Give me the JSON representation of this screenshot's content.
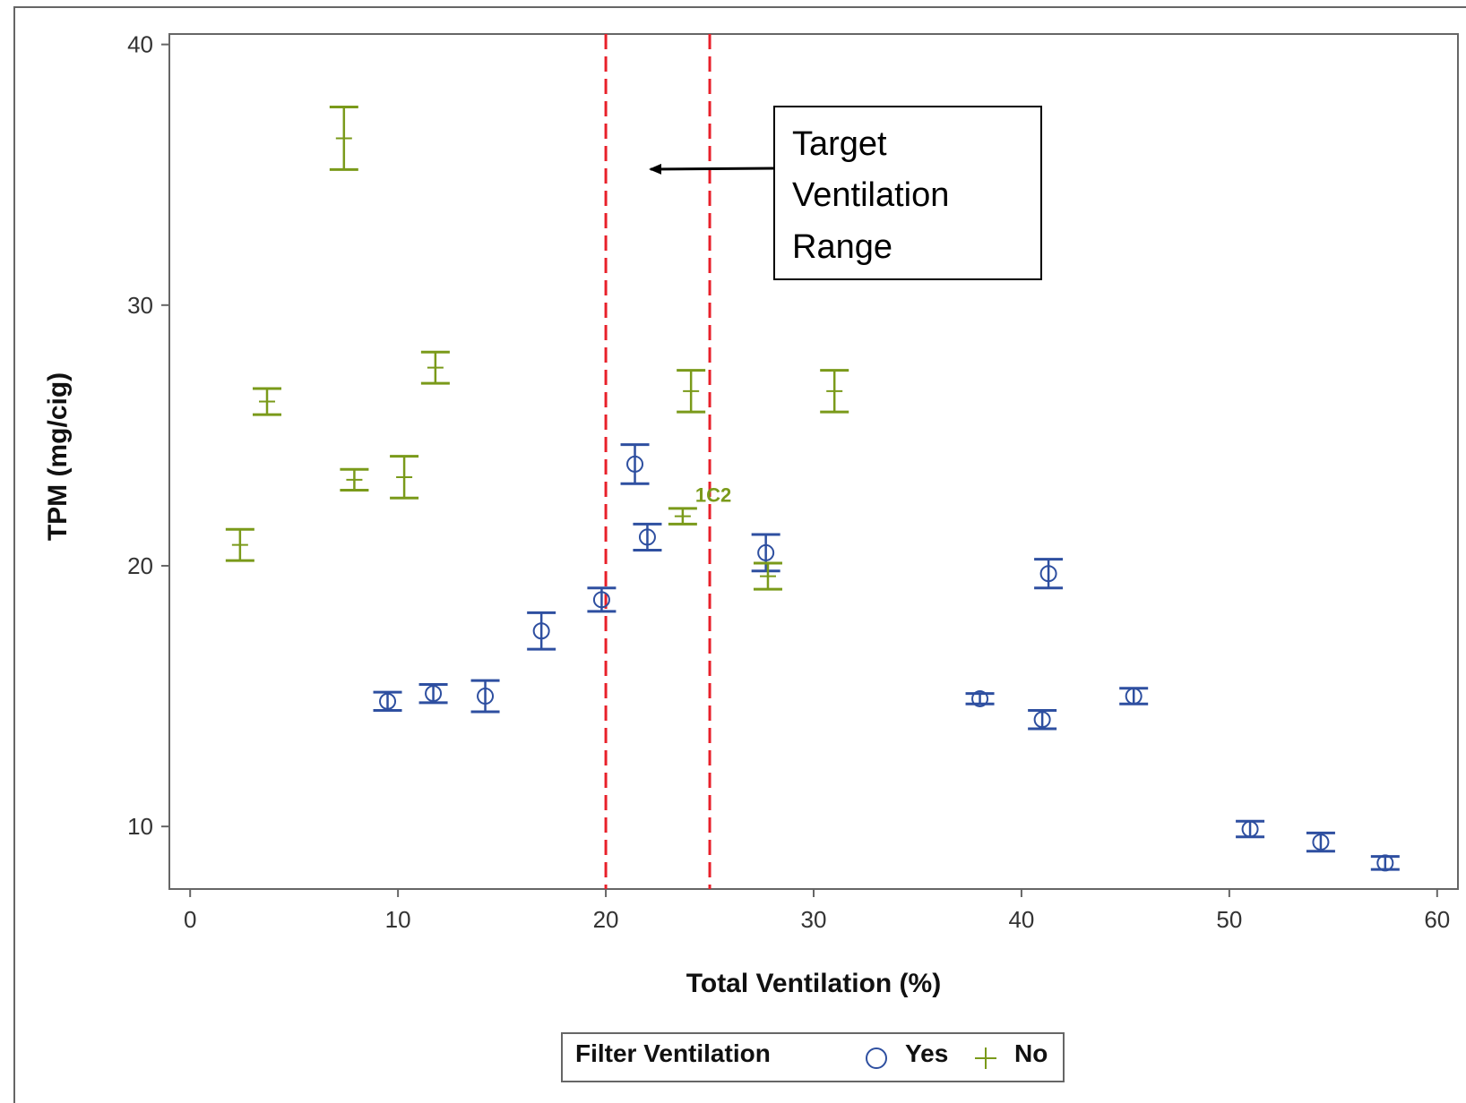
{
  "chart_data": {
    "type": "scatter",
    "xlabel": "Total Ventilation (%)",
    "ylabel": "TPM (mg/cig)",
    "xlim": [
      -1,
      61
    ],
    "ylim": [
      7.6,
      40.4
    ],
    "xticks": [
      0,
      10,
      20,
      30,
      40,
      50,
      60
    ],
    "yticks": [
      10,
      20,
      30,
      40
    ],
    "grid": false,
    "legend": {
      "title": "Filter Ventilation",
      "placement": "bottom-center",
      "entries": [
        "Yes",
        "No"
      ]
    },
    "colors": {
      "Yes": "#2E4FA0",
      "No": "#7A9A1A",
      "reference_lines": "#E8202A"
    },
    "reference_lines": [
      20,
      25
    ],
    "annotation": {
      "lines": [
        "Target",
        "Ventilation",
        "Range"
      ],
      "arrow_points_to": "target ventilation range"
    },
    "series": [
      {
        "name": "Yes",
        "marker": "circle",
        "points": [
          {
            "x": 9.5,
            "y": 14.8,
            "err": 0.35
          },
          {
            "x": 11.7,
            "y": 15.1,
            "err": 0.35
          },
          {
            "x": 14.2,
            "y": 15.0,
            "err": 0.6
          },
          {
            "x": 16.9,
            "y": 17.5,
            "err": 0.7
          },
          {
            "x": 19.8,
            "y": 18.7,
            "err": 0.45
          },
          {
            "x": 21.4,
            "y": 23.9,
            "err": 0.75
          },
          {
            "x": 22.0,
            "y": 21.1,
            "err": 0.5
          },
          {
            "x": 27.7,
            "y": 20.5,
            "err": 0.7
          },
          {
            "x": 38.0,
            "y": 14.9,
            "err": 0.2
          },
          {
            "x": 41.0,
            "y": 14.1,
            "err": 0.35
          },
          {
            "x": 41.3,
            "y": 19.7,
            "err": 0.55
          },
          {
            "x": 45.4,
            "y": 15.0,
            "err": 0.3
          },
          {
            "x": 51.0,
            "y": 9.9,
            "err": 0.3
          },
          {
            "x": 54.4,
            "y": 9.4,
            "err": 0.35
          },
          {
            "x": 57.5,
            "y": 8.6,
            "err": 0.25
          }
        ]
      },
      {
        "name": "No",
        "marker": "plus",
        "points": [
          {
            "x": 2.4,
            "y": 20.8,
            "err": 0.6
          },
          {
            "x": 3.7,
            "y": 26.3,
            "err": 0.5
          },
          {
            "x": 7.4,
            "y": 36.4,
            "err": 1.2
          },
          {
            "x": 7.9,
            "y": 23.3,
            "err": 0.4
          },
          {
            "x": 10.3,
            "y": 23.4,
            "err": 0.8
          },
          {
            "x": 11.8,
            "y": 27.6,
            "err": 0.6
          },
          {
            "x": 23.7,
            "y": 21.9,
            "err": 0.3,
            "label": "1C2"
          },
          {
            "x": 24.1,
            "y": 26.7,
            "err": 0.8
          },
          {
            "x": 27.8,
            "y": 19.6,
            "err": 0.5
          },
          {
            "x": 31.0,
            "y": 26.7,
            "err": 0.8
          }
        ]
      }
    ]
  }
}
